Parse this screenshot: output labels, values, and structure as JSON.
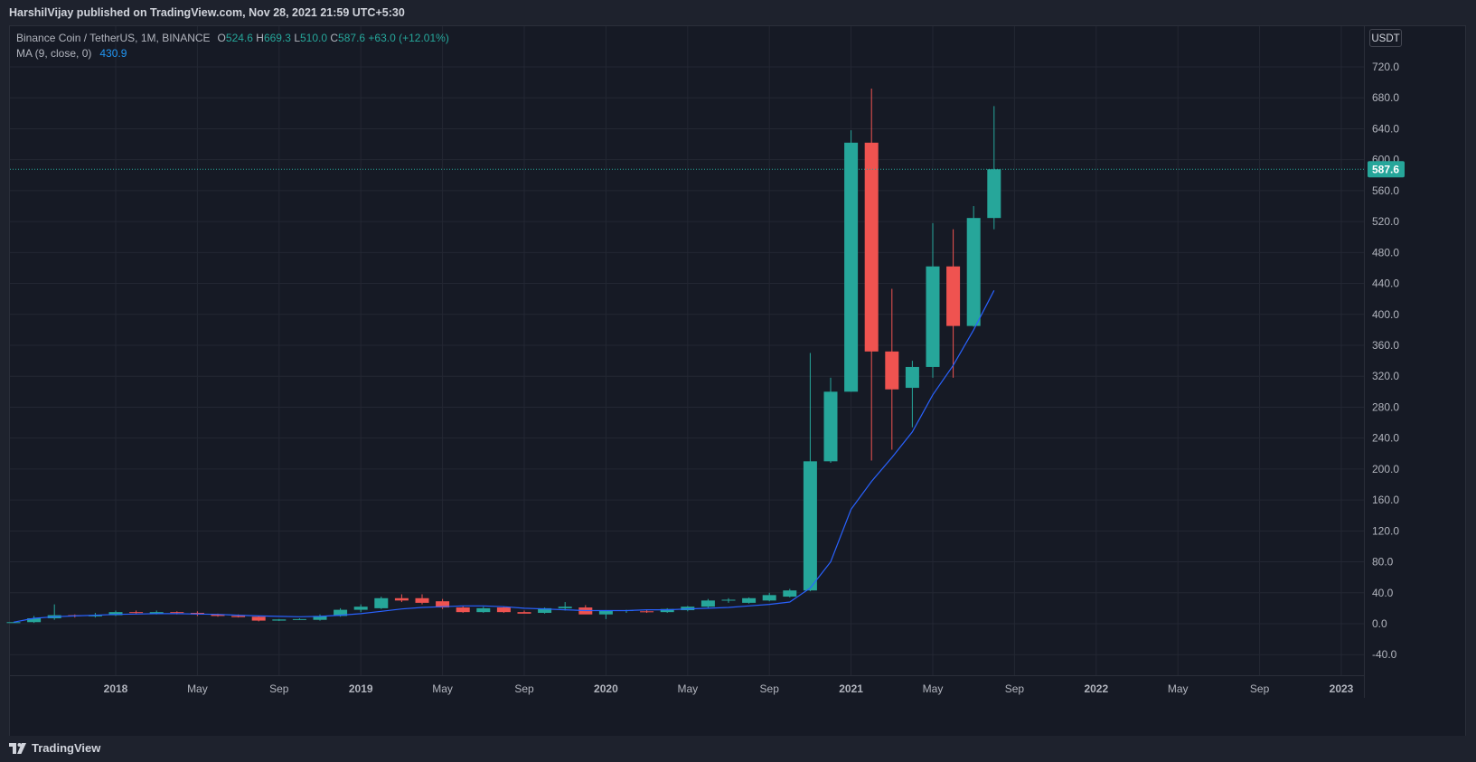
{
  "header": {
    "published_text": "HarshilVijay published on TradingView.com, Nov 28, 2021 21:59 UTC+5:30"
  },
  "legend": {
    "symbol": "Binance Coin / TetherUS, 1M, BINANCE",
    "o_label": "O",
    "o_value": "524.6",
    "h_label": "H",
    "h_value": "669.3",
    "l_label": "L",
    "l_value": "510.0",
    "c_label": "C",
    "c_value": "587.6",
    "change": "+63.0 (+12.01%)",
    "ma_label": "MA (9, close, 0)",
    "ma_value": "430.9"
  },
  "price_axis": {
    "unit_button": "USDT",
    "last_price_label": "587.6"
  },
  "footer": {
    "brand": "TradingView"
  },
  "colors": {
    "up": "#26a69a",
    "down": "#ef5350",
    "ma": "#2962ff",
    "background": "#161a25",
    "grid": "#232733",
    "text": "#b2b5be"
  },
  "chart_data": {
    "type": "candlestick",
    "symbol": "BNBUSDT",
    "interval": "1M",
    "y_ticks": [
      -40,
      0,
      40,
      80,
      120,
      160,
      200,
      240,
      280,
      320,
      360,
      400,
      440,
      480,
      520,
      560,
      600,
      640,
      680,
      720
    ],
    "y_tick_labels": [
      "-40.0",
      "0.0",
      "40.0",
      "80.0",
      "120.0",
      "160.0",
      "200.0",
      "240.0",
      "280.0",
      "320.0",
      "360.0",
      "400.0",
      "440.0",
      "480.0",
      "520.0",
      "560.0",
      "600.0",
      "640.0",
      "680.0",
      "720.0"
    ],
    "x_ticks": [
      {
        "label": "2018",
        "date": "2018-01"
      },
      {
        "label": "May",
        "date": "2018-05"
      },
      {
        "label": "Sep",
        "date": "2018-09"
      },
      {
        "label": "2019",
        "date": "2019-01"
      },
      {
        "label": "May",
        "date": "2019-05"
      },
      {
        "label": "Sep",
        "date": "2019-09"
      },
      {
        "label": "2020",
        "date": "2020-01"
      },
      {
        "label": "May",
        "date": "2020-05"
      },
      {
        "label": "Sep",
        "date": "2020-09"
      },
      {
        "label": "2021",
        "date": "2021-01"
      },
      {
        "label": "May",
        "date": "2021-05"
      },
      {
        "label": "Sep",
        "date": "2021-09"
      },
      {
        "label": "2022",
        "date": "2022-01"
      },
      {
        "label": "May",
        "date": "2022-05"
      },
      {
        "label": "Sep",
        "date": "2022-09"
      },
      {
        "label": "2023",
        "date": "2023-01"
      }
    ],
    "x_range": [
      "2017-06",
      "2023-03"
    ],
    "last_price": 587.6,
    "candles": [
      {
        "date": "2017-08",
        "o": 1.5,
        "h": 2.0,
        "l": 1.0,
        "c": 2.0
      },
      {
        "date": "2017-09",
        "o": 2.0,
        "h": 10.0,
        "l": 1.0,
        "c": 7.0
      },
      {
        "date": "2017-10",
        "o": 7.0,
        "h": 25.0,
        "l": 5.0,
        "c": 11.0
      },
      {
        "date": "2017-11",
        "o": 11.0,
        "h": 12.0,
        "l": 8.0,
        "c": 10.0
      },
      {
        "date": "2017-12",
        "o": 9.5,
        "h": 14.0,
        "l": 8.0,
        "c": 11.0
      },
      {
        "date": "2018-01",
        "o": 11.0,
        "h": 17.0,
        "l": 10.0,
        "c": 15.0
      },
      {
        "date": "2018-02",
        "o": 15.0,
        "h": 17.0,
        "l": 13.0,
        "c": 14.0
      },
      {
        "date": "2018-03",
        "o": 13.0,
        "h": 17.0,
        "l": 12.0,
        "c": 15.0
      },
      {
        "date": "2018-04",
        "o": 15.0,
        "h": 16.0,
        "l": 12.0,
        "c": 14.0
      },
      {
        "date": "2018-05",
        "o": 14.0,
        "h": 16.0,
        "l": 10.0,
        "c": 12.0
      },
      {
        "date": "2018-06",
        "o": 12.0,
        "h": 13.0,
        "l": 9.0,
        "c": 10.0
      },
      {
        "date": "2018-07",
        "o": 10.0,
        "h": 12.0,
        "l": 8.0,
        "c": 8.5
      },
      {
        "date": "2018-08",
        "o": 9.0,
        "h": 10.0,
        "l": 3.0,
        "c": 4.0
      },
      {
        "date": "2018-09",
        "o": 4.0,
        "h": 6.0,
        "l": 3.5,
        "c": 5.5
      },
      {
        "date": "2018-10",
        "o": 5.5,
        "h": 7.0,
        "l": 5.0,
        "c": 6.0
      },
      {
        "date": "2018-11",
        "o": 5.0,
        "h": 12.0,
        "l": 4.0,
        "c": 10.0
      },
      {
        "date": "2018-12",
        "o": 10.0,
        "h": 20.0,
        "l": 9.0,
        "c": 18.0
      },
      {
        "date": "2019-01",
        "o": 18.0,
        "h": 25.0,
        "l": 15.0,
        "c": 22.0
      },
      {
        "date": "2019-02",
        "o": 20.0,
        "h": 35.0,
        "l": 19.0,
        "c": 33.0
      },
      {
        "date": "2019-03",
        "o": 33.0,
        "h": 38.0,
        "l": 28.0,
        "c": 30.0
      },
      {
        "date": "2019-04",
        "o": 33.0,
        "h": 38.0,
        "l": 25.0,
        "c": 27.0
      },
      {
        "date": "2019-05",
        "o": 29.0,
        "h": 32.0,
        "l": 19.0,
        "c": 21.0
      },
      {
        "date": "2019-06",
        "o": 21.0,
        "h": 23.0,
        "l": 14.0,
        "c": 15.0
      },
      {
        "date": "2019-07",
        "o": 15.0,
        "h": 22.0,
        "l": 14.0,
        "c": 20.0
      },
      {
        "date": "2019-08",
        "o": 21.0,
        "h": 22.0,
        "l": 14.0,
        "c": 15.0
      },
      {
        "date": "2019-09",
        "o": 15.0,
        "h": 17.0,
        "l": 14.0,
        "c": 13.0
      },
      {
        "date": "2019-10",
        "o": 14.0,
        "h": 21.0,
        "l": 13.0,
        "c": 20.0
      },
      {
        "date": "2019-11",
        "o": 20.0,
        "h": 28.0,
        "l": 17.0,
        "c": 22.0
      },
      {
        "date": "2019-12",
        "o": 21.0,
        "h": 24.0,
        "l": 13.0,
        "c": 12.0
      },
      {
        "date": "2020-01",
        "o": 12.0,
        "h": 14.0,
        "l": 6.0,
        "c": 17.0
      },
      {
        "date": "2020-02",
        "o": 17.0,
        "h": 18.0,
        "l": 14.0,
        "c": 17.5
      },
      {
        "date": "2020-03",
        "o": 16.0,
        "h": 18.0,
        "l": 14.0,
        "c": 15.0
      },
      {
        "date": "2020-04",
        "o": 15.0,
        "h": 20.0,
        "l": 14.0,
        "c": 19.0
      },
      {
        "date": "2020-05",
        "o": 17.5,
        "h": 23.0,
        "l": 16.0,
        "c": 22.0
      },
      {
        "date": "2020-06",
        "o": 22.0,
        "h": 32.0,
        "l": 20.0,
        "c": 30.0
      },
      {
        "date": "2020-07",
        "o": 30.0,
        "h": 33.0,
        "l": 27.0,
        "c": 31.0
      },
      {
        "date": "2020-08",
        "o": 27.0,
        "h": 34.0,
        "l": 26.0,
        "c": 33.0
      },
      {
        "date": "2020-09",
        "o": 30.0,
        "h": 40.0,
        "l": 29.0,
        "c": 37.0
      },
      {
        "date": "2020-10",
        "o": 35.0,
        "h": 45.0,
        "l": 34.0,
        "c": 43.0
      },
      {
        "date": "2020-11",
        "o": 43.0,
        "h": 350.0,
        "l": 42.0,
        "c": 210.0
      },
      {
        "date": "2020-12",
        "o": 210.0,
        "h": 318.0,
        "l": 208.0,
        "c": 300.0
      },
      {
        "date": "2021-01",
        "o": 300.0,
        "h": 638.0,
        "l": 300.0,
        "c": 622.0
      },
      {
        "date": "2021-02",
        "o": 622.0,
        "h": 692.0,
        "l": 211.0,
        "c": 352.0
      },
      {
        "date": "2021-03",
        "o": 352.0,
        "h": 433.0,
        "l": 225.0,
        "c": 303.0
      },
      {
        "date": "2021-04",
        "o": 305.0,
        "h": 340.0,
        "l": 254.0,
        "c": 332.0
      },
      {
        "date": "2021-05",
        "o": 332.0,
        "h": 518.0,
        "l": 318.0,
        "c": 462.0
      },
      {
        "date": "2021-06",
        "o": 462.0,
        "h": 510.0,
        "l": 318.0,
        "c": 385.0
      },
      {
        "date": "2021-07",
        "o": 385.0,
        "h": 540.0,
        "l": 384.0,
        "c": 524.6
      },
      {
        "date": "2021-08",
        "o": 524.6,
        "h": 669.3,
        "l": 510.0,
        "c": 587.6
      }
    ],
    "ma": {
      "name": "MA (9, close, 0)",
      "values": [
        {
          "date": "2017-08",
          "v": 2
        },
        {
          "date": "2017-09",
          "v": 7
        },
        {
          "date": "2017-10",
          "v": 9
        },
        {
          "date": "2017-11",
          "v": 10
        },
        {
          "date": "2017-12",
          "v": 11
        },
        {
          "date": "2018-01",
          "v": 12
        },
        {
          "date": "2018-02",
          "v": 12.5
        },
        {
          "date": "2018-03",
          "v": 13
        },
        {
          "date": "2018-04",
          "v": 13
        },
        {
          "date": "2018-05",
          "v": 12.5
        },
        {
          "date": "2018-06",
          "v": 12
        },
        {
          "date": "2018-07",
          "v": 11
        },
        {
          "date": "2018-08",
          "v": 10
        },
        {
          "date": "2018-09",
          "v": 9.5
        },
        {
          "date": "2018-10",
          "v": 9
        },
        {
          "date": "2018-11",
          "v": 9.5
        },
        {
          "date": "2018-12",
          "v": 11
        },
        {
          "date": "2019-01",
          "v": 13
        },
        {
          "date": "2019-02",
          "v": 16
        },
        {
          "date": "2019-03",
          "v": 19
        },
        {
          "date": "2019-04",
          "v": 21
        },
        {
          "date": "2019-05",
          "v": 22
        },
        {
          "date": "2019-06",
          "v": 23
        },
        {
          "date": "2019-07",
          "v": 23
        },
        {
          "date": "2019-08",
          "v": 22
        },
        {
          "date": "2019-09",
          "v": 20
        },
        {
          "date": "2019-10",
          "v": 19
        },
        {
          "date": "2019-11",
          "v": 18
        },
        {
          "date": "2019-12",
          "v": 17
        },
        {
          "date": "2020-01",
          "v": 17
        },
        {
          "date": "2020-02",
          "v": 17
        },
        {
          "date": "2020-03",
          "v": 18
        },
        {
          "date": "2020-04",
          "v": 18
        },
        {
          "date": "2020-05",
          "v": 19
        },
        {
          "date": "2020-06",
          "v": 20
        },
        {
          "date": "2020-07",
          "v": 21
        },
        {
          "date": "2020-08",
          "v": 23
        },
        {
          "date": "2020-09",
          "v": 25
        },
        {
          "date": "2020-10",
          "v": 28
        },
        {
          "date": "2020-11",
          "v": 46
        },
        {
          "date": "2020-12",
          "v": 80
        },
        {
          "date": "2021-01",
          "v": 148
        },
        {
          "date": "2021-02",
          "v": 184
        },
        {
          "date": "2021-03",
          "v": 215
        },
        {
          "date": "2021-04",
          "v": 248
        },
        {
          "date": "2021-05",
          "v": 296
        },
        {
          "date": "2021-06",
          "v": 334
        },
        {
          "date": "2021-07",
          "v": 380
        },
        {
          "date": "2021-08",
          "v": 430.9
        }
      ]
    }
  }
}
